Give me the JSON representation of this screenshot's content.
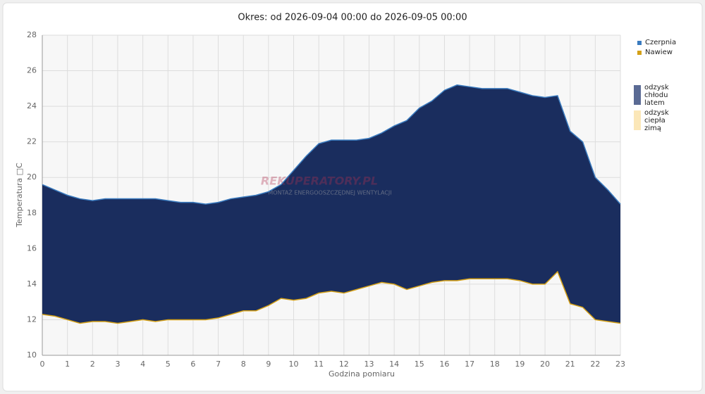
{
  "chart_data": {
    "type": "range-area",
    "title": "Okres: od 2026-09-04 00:00 do 2026-09-05 00:00",
    "x_label": "Godzina pomiaru",
    "y_label": "Temperatura □C",
    "watermark": "REKUPERATORY.PL",
    "watermark_sub": "MONTAŻ ENERGOOSZCZĘDNEJ WENTYLACJI",
    "x": [
      0,
      0.5,
      1,
      1.5,
      2,
      2.5,
      3,
      3.5,
      4,
      4.5,
      5,
      5.5,
      6,
      6.5,
      7,
      7.5,
      8,
      8.5,
      9,
      9.5,
      10,
      10.5,
      11,
      11.5,
      12,
      12.5,
      13,
      13.5,
      14,
      14.5,
      15,
      15.5,
      16,
      16.5,
      17,
      17.5,
      18,
      18.5,
      19,
      19.5,
      20,
      20.5,
      21,
      21.5,
      22,
      22.5,
      23
    ],
    "series": [
      {
        "name": "Czerpnia",
        "color": "#3a7bbf",
        "values": [
          19.6,
          19.3,
          19.0,
          18.8,
          18.7,
          18.8,
          18.8,
          18.8,
          18.8,
          18.8,
          18.7,
          18.6,
          18.6,
          18.5,
          18.6,
          18.8,
          18.9,
          19.0,
          19.2,
          19.6,
          20.4,
          21.2,
          21.9,
          22.1,
          22.1,
          22.1,
          22.2,
          22.5,
          22.9,
          23.2,
          23.9,
          24.3,
          24.9,
          25.2,
          25.1,
          25.0,
          25.0,
          25.0,
          24.8,
          24.6,
          24.5,
          24.6,
          22.6,
          22.0,
          20.0,
          19.3,
          18.5
        ]
      },
      {
        "name": "Nawiew",
        "color": "#d4a017",
        "values": [
          12.3,
          12.2,
          12.0,
          11.8,
          11.9,
          11.9,
          11.8,
          11.9,
          12.0,
          11.9,
          12.0,
          12.0,
          12.0,
          12.0,
          12.1,
          12.3,
          12.5,
          12.5,
          12.8,
          13.2,
          13.1,
          13.2,
          13.5,
          13.6,
          13.5,
          13.7,
          13.9,
          14.1,
          14.0,
          13.7,
          13.9,
          14.1,
          14.2,
          14.2,
          14.3,
          14.3,
          14.3,
          14.3,
          14.2,
          14.0,
          14.0,
          14.7,
          12.9,
          12.7,
          12.0,
          11.9,
          11.8
        ]
      }
    ],
    "fill_color": "#1a2d5e",
    "fill_legend": [
      {
        "name": "odzysk\nchłodu\nlatem",
        "color": "#5a6a94"
      },
      {
        "name": "odzysk\nciepła\nzimą",
        "color": "#fbe7b8"
      }
    ],
    "xlim": [
      0,
      23
    ],
    "xticks": [
      0,
      1,
      2,
      3,
      4,
      5,
      6,
      7,
      8,
      9,
      10,
      11,
      12,
      13,
      14,
      15,
      16,
      17,
      18,
      19,
      20,
      21,
      22,
      23
    ],
    "ylim": [
      10,
      28
    ],
    "yticks": [
      10,
      12,
      14,
      16,
      18,
      20,
      22,
      24,
      26,
      28
    ],
    "grid": true
  }
}
